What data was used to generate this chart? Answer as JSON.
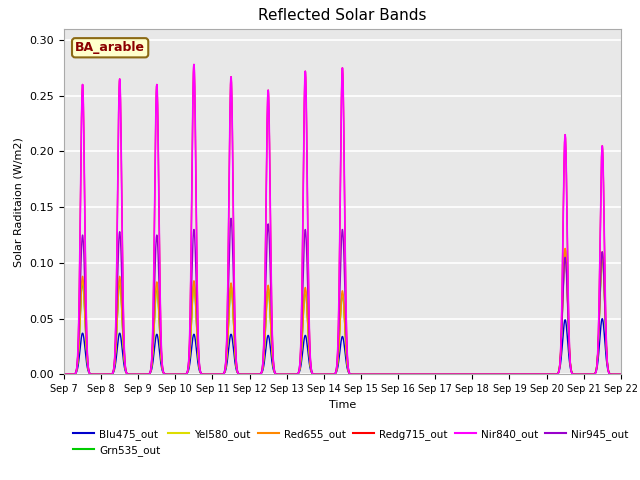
{
  "title": "Reflected Solar Bands",
  "xlabel": "Time",
  "ylabel": "Solar Raditaion (W/m2)",
  "annotation": "BA_arable",
  "annotation_color": "#8B0000",
  "annotation_bg": "#FFFFCC",
  "annotation_border": "#8B6914",
  "ylim": [
    0.0,
    0.31
  ],
  "yticks": [
    0.0,
    0.05,
    0.1,
    0.15,
    0.2,
    0.25,
    0.3
  ],
  "bg_color": "#E8E8E8",
  "fig_bg": "#FFFFFF",
  "series": {
    "Blu475_out": {
      "color": "#0000CC",
      "lw": 1.0
    },
    "Grn535_out": {
      "color": "#00CC00",
      "lw": 1.0
    },
    "Yel580_out": {
      "color": "#DDDD00",
      "lw": 1.0
    },
    "Red655_out": {
      "color": "#FF8800",
      "lw": 1.0
    },
    "Redg715_out": {
      "color": "#FF0000",
      "lw": 1.0
    },
    "Nir840_out": {
      "color": "#FF00FF",
      "lw": 1.2
    },
    "Nir945_out": {
      "color": "#9900CC",
      "lw": 1.0
    }
  },
  "xtick_labels": [
    "Sep 7",
    "Sep 8",
    "Sep 9",
    "Sep 10",
    "Sep 11",
    "Sep 12",
    "Sep 13",
    "Sep 14",
    "Sep 15",
    "Sep 16",
    "Sep 17",
    "Sep 18",
    "Sep 19",
    "Sep 20",
    "Sep 21",
    "Sep 22"
  ],
  "legend_row1": [
    "Blu475_out",
    "Grn535_out",
    "Yel580_out",
    "Red655_out",
    "Redg715_out",
    "Nir840_out"
  ],
  "legend_row2": [
    "Nir945_out"
  ],
  "n_days": 16
}
